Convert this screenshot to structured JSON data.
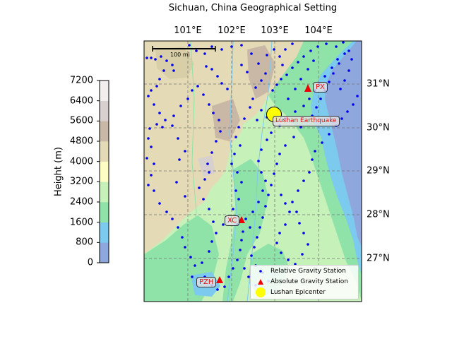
{
  "title": "Sichuan, China Geographical Setting",
  "longitude_labels": [
    "101°E",
    "102°E",
    "103°E",
    "104°E"
  ],
  "latitude_labels": [
    "31°N",
    "30°N",
    "29°N",
    "28°N",
    "27°N"
  ],
  "colorbar": {
    "label": "Height (m)",
    "ticks": [
      "7200",
      "6400",
      "5600",
      "4800",
      "4000",
      "3200",
      "2400",
      "1600",
      "800",
      "0"
    ],
    "colors": [
      "#8ea7dd",
      "#7ccbee",
      "#8fe3a8",
      "#c6f1b8",
      "#fefec4",
      "#e4dbb6",
      "#c9b8a6",
      "#d8cfcf",
      "#f2eeee"
    ]
  },
  "scale_bar": "100 mi",
  "epicenter_label": "Lushan Earthquake",
  "stations": {
    "px": "PX",
    "xc": "XC",
    "pzh": "PZH"
  },
  "legend": {
    "relative": "Relative Gravity Station",
    "absolute": "Absolute Gravity Station",
    "epicenter": "Lushan Epicenter"
  },
  "colors": {
    "relative_station": "#0000ee",
    "absolute_station": "#ee0000",
    "epicenter": "#ffff00",
    "sea": "#8ea7dd",
    "lowland": "#8fe3a8"
  }
}
